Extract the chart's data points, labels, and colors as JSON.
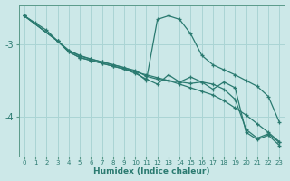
{
  "xlabel": "Humidex (Indice chaleur)",
  "ylabel": "",
  "bg_color": "#cce8e8",
  "grid_color": "#aad4d4",
  "line_color": "#2a7a70",
  "xlim": [
    -0.5,
    23.5
  ],
  "ylim": [
    -4.55,
    -2.45
  ],
  "yticks": [
    -4,
    -3
  ],
  "xticks": [
    0,
    1,
    2,
    3,
    4,
    5,
    6,
    7,
    8,
    9,
    10,
    11,
    12,
    13,
    14,
    15,
    16,
    17,
    18,
    19,
    20,
    21,
    22,
    23
  ],
  "series": [
    {
      "x": [
        0,
        1,
        2,
        3,
        4,
        5,
        6,
        7,
        8,
        9,
        10,
        11,
        12,
        13,
        14,
        15,
        16,
        17,
        18,
        19,
        20,
        21,
        22,
        23
      ],
      "y": [
        -2.6,
        -2.7,
        -2.8,
        -2.95,
        -3.1,
        -3.18,
        -3.22,
        -3.26,
        -3.3,
        -3.34,
        -3.38,
        -3.42,
        -3.46,
        -3.5,
        -3.55,
        -3.6,
        -3.65,
        -3.7,
        -3.78,
        -3.88,
        -3.98,
        -4.1,
        -4.22,
        -4.35
      ]
    },
    {
      "x": [
        0,
        3,
        4,
        5,
        6,
        7,
        8,
        9,
        10,
        11,
        12,
        13,
        14,
        15,
        16,
        17,
        18,
        19,
        20,
        21,
        22,
        23
      ],
      "y": [
        -2.6,
        -2.95,
        -3.08,
        -3.15,
        -3.2,
        -3.24,
        -3.28,
        -3.32,
        -3.38,
        -3.5,
        -2.65,
        -2.6,
        -2.65,
        -2.85,
        -3.15,
        -3.28,
        -3.35,
        -3.42,
        -3.5,
        -3.58,
        -3.72,
        -4.08
      ]
    },
    {
      "x": [
        0,
        3,
        4,
        5,
        6,
        7,
        8,
        9,
        10,
        11,
        12,
        13,
        14,
        15,
        16,
        17,
        18,
        19,
        20,
        21,
        22,
        23
      ],
      "y": [
        -2.6,
        -2.95,
        -3.1,
        -3.18,
        -3.22,
        -3.26,
        -3.3,
        -3.34,
        -3.4,
        -3.48,
        -3.55,
        -3.42,
        -3.52,
        -3.45,
        -3.52,
        -3.62,
        -3.52,
        -3.6,
        -4.22,
        -4.32,
        -4.26,
        -4.4
      ]
    },
    {
      "x": [
        0,
        3,
        4,
        5,
        6,
        7,
        8,
        9,
        10,
        11,
        12,
        13,
        14,
        15,
        16,
        17,
        18,
        19,
        20,
        21,
        22,
        23
      ],
      "y": [
        -2.6,
        -2.95,
        -3.08,
        -3.16,
        -3.2,
        -3.24,
        -3.28,
        -3.32,
        -3.36,
        -3.44,
        -3.48,
        -3.5,
        -3.52,
        -3.54,
        -3.52,
        -3.55,
        -3.62,
        -3.76,
        -4.18,
        -4.3,
        -4.24,
        -4.36
      ]
    }
  ]
}
